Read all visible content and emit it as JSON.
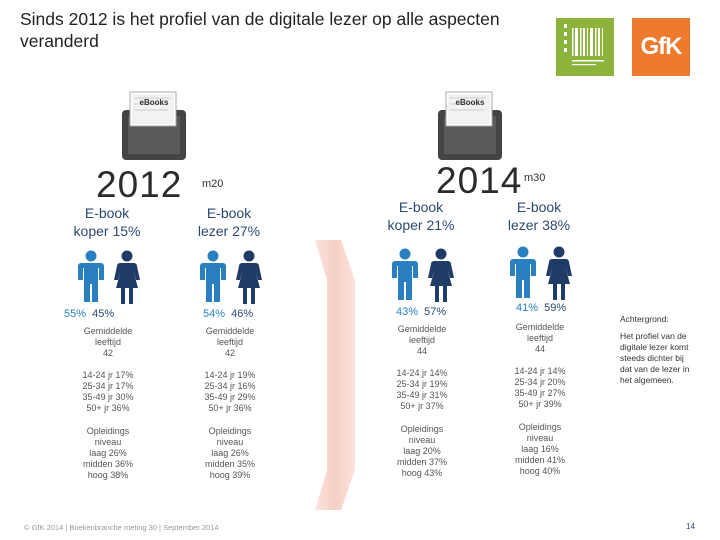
{
  "title": "Sinds 2012 is het profiel van de digitale lezer op alle aspecten veranderd",
  "colors": {
    "male": "#2a7fc0",
    "female": "#1f3b66",
    "gfk": "#ee7a2d",
    "logo_green": "#8cb43c",
    "arrow": "#f6d0c8"
  },
  "icons": [
    "ebook-reader-icon",
    "male-figure-icon",
    "female-figure-icon",
    "gfk-logo",
    "cpnb-logo"
  ],
  "years": [
    {
      "year": "2012",
      "wave": "m20",
      "ebook_label": "eBooks",
      "groups": [
        {
          "label": [
            "E-book",
            "koper 15%"
          ],
          "male_pct": "55%",
          "female_pct": "45%",
          "age_label": [
            "Gemiddelde",
            "leeftijd",
            "42"
          ],
          "age_groups": [
            "14-24 jr 17%",
            "25-34 jr 17%",
            "35-49 jr 30%",
            "50+ jr 36%"
          ],
          "education": [
            "Opleidings",
            "niveau",
            "laag 26%",
            "midden 36%",
            "hoog 38%"
          ]
        },
        {
          "label": [
            "E-book",
            "lezer 27%"
          ],
          "male_pct": "54%",
          "female_pct": "46%",
          "age_label": [
            "Gemiddelde",
            "leeftijd",
            "42"
          ],
          "age_groups": [
            "14-24 jr 19%",
            "25-34 jr 16%",
            "35-49 jr 29%",
            "50+ jr 36%"
          ],
          "education": [
            "Opleidings",
            "niveau",
            "laag 26%",
            "midden 35%",
            "hoog 39%"
          ]
        }
      ]
    },
    {
      "year": "2014",
      "wave": "m30",
      "ebook_label": "eBooks",
      "groups": [
        {
          "label": [
            "E-book",
            "koper 21%"
          ],
          "male_pct": "43%",
          "female_pct": "57%",
          "age_label": [
            "Gemiddelde",
            "leeftijd",
            "44"
          ],
          "age_groups": [
            "14-24 jr 14%",
            "25-34 jr 19%",
            "35-49 jr 31%",
            "50+ jr 37%"
          ],
          "education": [
            "Opleidings",
            "niveau",
            "laag 20%",
            "midden 37%",
            "hoog 43%"
          ]
        },
        {
          "label": [
            "E-book",
            "lezer 38%"
          ],
          "male_pct": "41%",
          "female_pct": "59%",
          "age_label": [
            "Gemiddelde",
            "leeftijd",
            "44"
          ],
          "age_groups": [
            "14-24 jr 14%",
            "25-34 jr 20%",
            "35-49 jr 27%",
            "50+ jr 39%"
          ],
          "education": [
            "Opleidings",
            "niveau",
            "laag 16%",
            "midden 41%",
            "hoog 40%"
          ]
        }
      ]
    }
  ],
  "background_note": {
    "heading": "Achtergrond:",
    "text": [
      "Het profiel van de",
      "digitale lezer komt",
      "steeds dichter bij",
      "dat van de lezer in",
      "het algemeen."
    ]
  },
  "gfk_logo_text": "GfK",
  "footer": "© GfK 2014 | Boekenbranche meting 30 | September 2014",
  "page_number": "14"
}
